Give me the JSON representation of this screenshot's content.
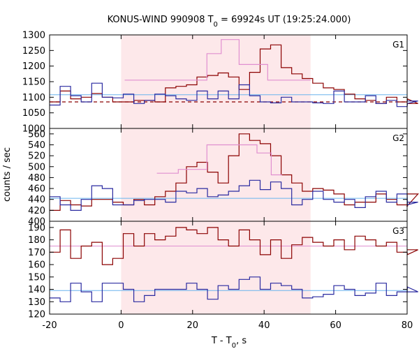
{
  "title": "KONUS-WIND 990908 T",
  "title_sub": "0",
  "title_rest": " = 69924s UT (19:25:24.000)",
  "xlabel_main": "T - T",
  "xlabel_sub": "0",
  "xlabel_rest": ", s",
  "ylabel": "counts / sec",
  "colors": {
    "dark_red": "#8b0000",
    "blue": "#2a2aa0",
    "pink": "#e08fd0",
    "light_blue": "#6ab4ee",
    "shade": "#fde8ea"
  },
  "chart_data": {
    "type": "line",
    "x_ticks": [
      "-20",
      "0",
      "20",
      "40",
      "60",
      "80"
    ],
    "xlim": [
      -20,
      80
    ],
    "shaded_interval": [
      0,
      53
    ],
    "panels": [
      {
        "label": "G1",
        "ylim": [
          1000,
          1300
        ],
        "y_ticks": [
          "1000",
          "1050",
          "1100",
          "1150",
          "1200",
          "1250",
          "1300"
        ],
        "dashed_background_level": 1085,
        "background_level": 1108,
        "series": [
          {
            "color": "dark_red",
            "bin_width": 2.944,
            "x_start": -20,
            "values": [
              1085,
              1120,
              1095,
              1100,
              1112,
              1100,
              1085,
              1085,
              1090,
              1090,
              1085,
              1130,
              1135,
              1140,
              1165,
              1170,
              1178,
              1165,
              1125,
              1180,
              1255,
              1268,
              1195,
              1175,
              1160,
              1145,
              1130,
              1125,
              1110,
              1095,
              1090,
              1080,
              1100,
              1085,
              1095,
              1080
            ]
          },
          {
            "color": "blue",
            "bin_width": 2.944,
            "x_start": -20,
            "values": [
              1075,
              1135,
              1105,
              1085,
              1145,
              1100,
              1098,
              1110,
              1080,
              1090,
              1110,
              1105,
              1095,
              1090,
              1120,
              1095,
              1120,
              1095,
              1140,
              1105,
              1085,
              1082,
              1100,
              1085,
              1085,
              1082,
              1080,
              1120,
              1085,
              1085,
              1105,
              1080,
              1090,
              1070,
              1080,
              1088
            ]
          },
          {
            "color": "pink",
            "step_x": [
              1,
              24,
              28,
              33,
              41,
              53
            ],
            "step_y": [
              1155,
              1240,
              1285,
              1205,
              1155
            ]
          }
        ]
      },
      {
        "label": "G2",
        "ylim": [
          400,
          570
        ],
        "y_ticks": [
          "400",
          "420",
          "440",
          "460",
          "480",
          "500",
          "520",
          "540",
          "560"
        ],
        "background_level": 442,
        "series": [
          {
            "color": "dark_red",
            "bin_width": 2.944,
            "x_start": -20,
            "values": [
              420,
              438,
              430,
              428,
              440,
              440,
              435,
              430,
              440,
              430,
              445,
              455,
              470,
              500,
              508,
              490,
              470,
              520,
              560,
              548,
              542,
              520,
              485,
              470,
              455,
              460,
              457,
              450,
              430,
              435,
              435,
              450,
              440,
              430,
              428,
              450
            ]
          },
          {
            "color": "blue",
            "bin_width": 2.944,
            "x_start": -20,
            "values": [
              445,
              430,
              420,
              440,
              465,
              460,
              430,
              430,
              438,
              440,
              440,
              435,
              455,
              452,
              460,
              445,
              448,
              455,
              465,
              475,
              458,
              472,
              460,
              430,
              440,
              455,
              440,
              435,
              440,
              425,
              445,
              455,
              435,
              450,
              430,
              435
            ]
          },
          {
            "color": "pink",
            "step_x": [
              10,
              16,
              24,
              38,
              42,
              45
            ],
            "step_y": [
              488,
              495,
              540,
              525,
              485
            ]
          }
        ]
      },
      {
        "label": "G3",
        "ylim": [
          120,
          195
        ],
        "y_ticks": [
          "120",
          "130",
          "140",
          "150",
          "160",
          "170",
          "180",
          "190"
        ],
        "background_level_red": 175,
        "background_level_blue": 139,
        "series": [
          {
            "color": "dark_red",
            "bin_width": 2.944,
            "x_start": -20,
            "values": [
              170,
              188,
              165,
              175,
              178,
              160,
              165,
              185,
              175,
              185,
              180,
              183,
              190,
              188,
              185,
              190,
              180,
              175,
              188,
              180,
              168,
              180,
              165,
              176,
              182,
              178,
              175,
              180,
              172,
              183,
              180,
              175,
              178,
              170,
              168,
              172
            ]
          },
          {
            "color": "blue",
            "bin_width": 2.944,
            "x_start": -20,
            "values": [
              133,
              130,
              145,
              138,
              130,
              145,
              145,
              140,
              130,
              135,
              140,
              140,
              140,
              145,
              140,
              132,
              143,
              140,
              148,
              150,
              140,
              145,
              143,
              140,
              133,
              134,
              136,
              143,
              140,
              135,
              137,
              145,
              135,
              138,
              142,
              138
            ]
          }
        ]
      }
    ]
  }
}
